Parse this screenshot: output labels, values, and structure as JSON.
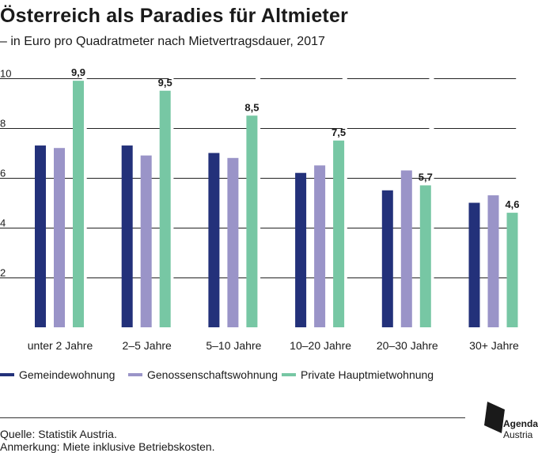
{
  "title": "Österreich als Paradies für Altmieter",
  "subtitle": "– in Euro pro Quadratmeter nach Mietvertragsdauer, 2017",
  "colors": {
    "series": [
      "#23317a",
      "#9a94c8",
      "#77c7a4"
    ],
    "grid": "#222222"
  },
  "chart_data": {
    "type": "bar",
    "categories": [
      "unter 2 Jahre",
      "2–5 Jahre",
      "5–10 Jahre",
      "10–20 Jahre",
      "20–30 Jahre",
      "30+ Jahre"
    ],
    "series": [
      {
        "name": "Gemeindewohnung",
        "values": [
          7.3,
          7.3,
          7.0,
          6.2,
          5.5,
          5.0
        ]
      },
      {
        "name": "Genossenschaftswohnung",
        "values": [
          7.2,
          6.9,
          6.8,
          6.5,
          6.3,
          5.3
        ]
      },
      {
        "name": "Private Hauptmietwohnung",
        "values": [
          9.9,
          9.5,
          8.5,
          7.5,
          5.7,
          4.6
        ]
      }
    ],
    "data_labels": [
      "9,9",
      "9,5",
      "8,5",
      "7,5",
      "5,7",
      "4,6"
    ],
    "yticks": [
      2,
      4,
      6,
      8,
      10
    ],
    "ylim": [
      0,
      10.4
    ],
    "legend_position": "bottom",
    "grid": true
  },
  "source": "Quelle: Statistik Austria.",
  "note": "Anmerkung: Miete inklusive Betriebskosten.",
  "logo": {
    "line1": "Agenda",
    "line2": "Austria"
  }
}
